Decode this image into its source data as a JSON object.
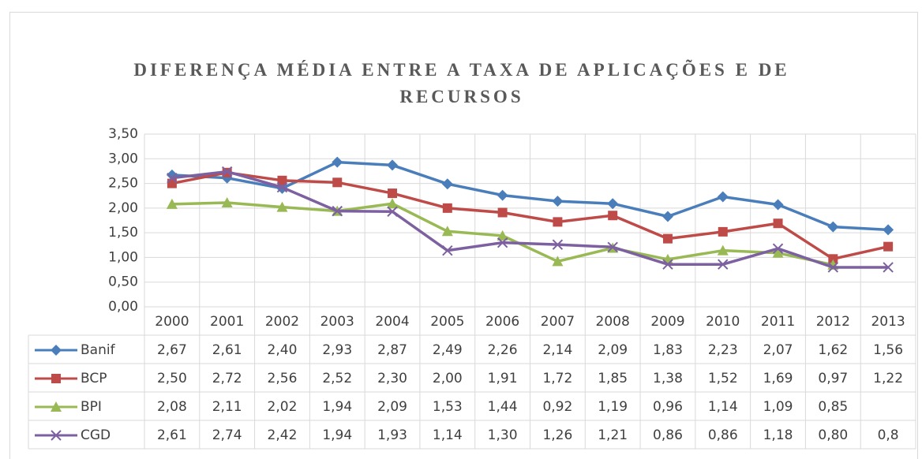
{
  "chart_data": {
    "type": "line",
    "title": "DIFERENÇA MÉDIA ENTRE A TAXA DE APLICAÇÕES E DE RECURSOS",
    "categories": [
      "2000",
      "2001",
      "2002",
      "2003",
      "2004",
      "2005",
      "2006",
      "2007",
      "2008",
      "2009",
      "2010",
      "2011",
      "2012",
      "2013"
    ],
    "series": [
      {
        "name": "Banif",
        "color": "#4a7ebb",
        "marker": "diamond",
        "values": [
          2.67,
          2.61,
          2.4,
          2.93,
          2.87,
          2.49,
          2.26,
          2.14,
          2.09,
          1.83,
          2.23,
          2.07,
          1.62,
          1.56
        ],
        "value_labels": [
          "2,67",
          "2,61",
          "2,40",
          "2,93",
          "2,87",
          "2,49",
          "2,26",
          "2,14",
          "2,09",
          "1,83",
          "2,23",
          "2,07",
          "1,62",
          "1,56"
        ]
      },
      {
        "name": "BCP",
        "color": "#be4b48",
        "marker": "square",
        "values": [
          2.5,
          2.72,
          2.56,
          2.52,
          2.3,
          2.0,
          1.91,
          1.72,
          1.85,
          1.38,
          1.52,
          1.69,
          0.97,
          1.22
        ],
        "value_labels": [
          "2,50",
          "2,72",
          "2,56",
          "2,52",
          "2,30",
          "2,00",
          "1,91",
          "1,72",
          "1,85",
          "1,38",
          "1,52",
          "1,69",
          "0,97",
          "1,22"
        ]
      },
      {
        "name": "BPI",
        "color": "#98b954",
        "marker": "triangle",
        "values": [
          2.08,
          2.11,
          2.02,
          1.94,
          2.09,
          1.53,
          1.44,
          0.92,
          1.19,
          0.96,
          1.14,
          1.09,
          0.85,
          null
        ],
        "value_labels": [
          "2,08",
          "2,11",
          "2,02",
          "1,94",
          "2,09",
          "1,53",
          "1,44",
          "0,92",
          "1,19",
          "0,96",
          "1,14",
          "1,09",
          "0,85",
          null
        ]
      },
      {
        "name": "CGD",
        "color": "#7d60a0",
        "marker": "x",
        "values": [
          2.61,
          2.74,
          2.42,
          1.94,
          1.93,
          1.14,
          1.3,
          1.26,
          1.21,
          0.86,
          0.86,
          1.18,
          0.8,
          0.8
        ],
        "value_labels": [
          "2,61",
          "2,74",
          "2,42",
          "1,94",
          "1,93",
          "1,14",
          "1,30",
          "1,26",
          "1,21",
          "0,86",
          "0,86",
          "1,18",
          "0,80",
          "0,8"
        ]
      }
    ],
    "ylim": [
      0,
      3.5
    ],
    "yticks": [
      {
        "value": 0,
        "label": "0,00"
      },
      {
        "value": 0.5,
        "label": "0,50"
      },
      {
        "value": 1,
        "label": "1,00"
      },
      {
        "value": 1.5,
        "label": "1,50"
      },
      {
        "value": 2,
        "label": "2,00"
      },
      {
        "value": 2.5,
        "label": "2,50"
      },
      {
        "value": 3,
        "label": "3,00"
      },
      {
        "value": 3.5,
        "label": "3,50"
      }
    ],
    "grid": true
  }
}
